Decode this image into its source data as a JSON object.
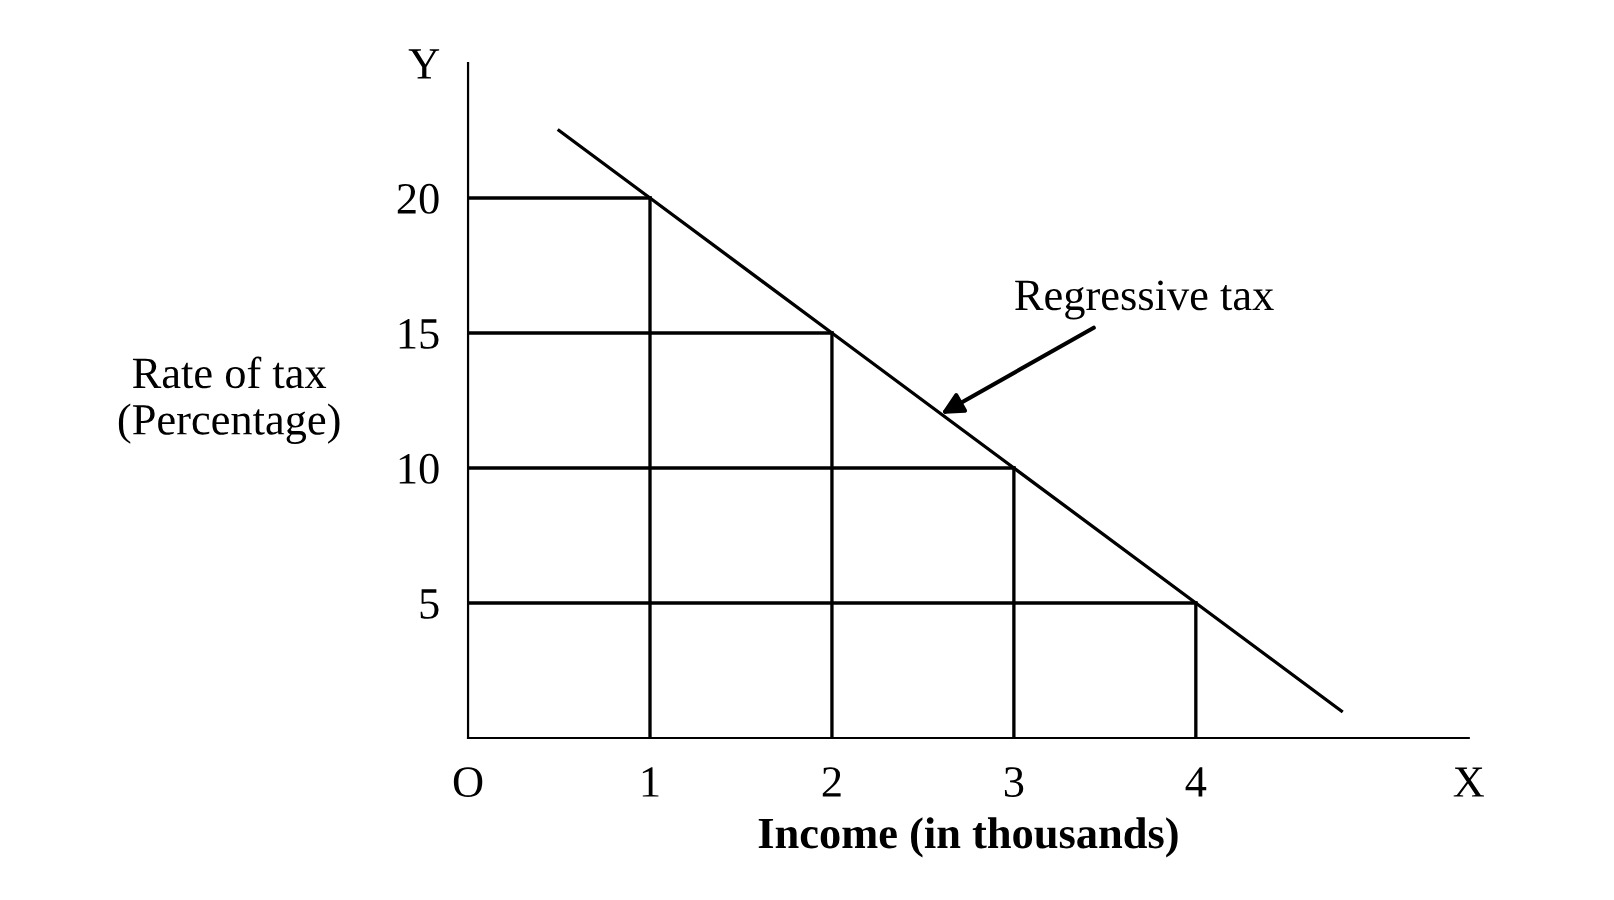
{
  "chart_data": {
    "type": "line",
    "xlabel": "Income (in thousands)",
    "ylabel": "Rate of tax\n(Percentage)",
    "series": [
      {
        "name": null,
        "color": "#000000",
        "x": [
          0.5,
          1,
          2,
          3,
          4,
          4.8
        ],
        "values": [
          22.5,
          20,
          15,
          10,
          5,
          1
        ]
      },
      {
        "color": "#000000",
        "x": [
          0,
          1
        ],
        "values": [
          20,
          20
        ]
      },
      {
        "color": "#000000",
        "x": [
          0,
          2
        ],
        "values": [
          15,
          15
        ]
      },
      {
        "color": "#000000",
        "x": [
          0,
          3
        ],
        "values": [
          10,
          10
        ]
      },
      {
        "color": "#000000",
        "x": [
          0,
          4
        ],
        "values": [
          5,
          5
        ]
      },
      {
        "color": "#000000",
        "x": [
          1,
          1
        ],
        "values": [
          0,
          20
        ]
      },
      {
        "color": "#000000",
        "x": [
          2,
          2
        ],
        "values": [
          0,
          15
        ]
      },
      {
        "color": "#000000",
        "x": [
          3,
          3
        ],
        "values": [
          0,
          10
        ]
      },
      {
        "color": "#000000",
        "x": [
          4,
          4
        ],
        "values": [
          0,
          5
        ]
      }
    ],
    "annotations": [
      {
        "text": "Regressive tax",
        "x": 2.6,
        "y": 12
      }
    ],
    "xlim": [
      0,
      5.5
    ],
    "ylim": [
      0,
      25
    ],
    "xticks": [
      {
        "value": 0,
        "label": "O"
      },
      1,
      2,
      3,
      4,
      {
        "value": 5.5,
        "label": "X"
      }
    ],
    "yticks": [
      5,
      10,
      15,
      20,
      {
        "value": 25,
        "label": "Y"
      }
    ],
    "grid": false,
    "legend": false,
    "marker": "none",
    "line_style": "solid"
  }
}
